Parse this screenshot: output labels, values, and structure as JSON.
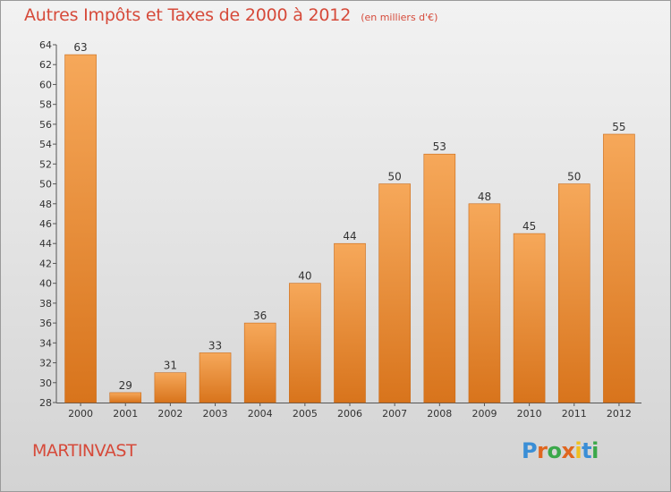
{
  "chart_data": {
    "type": "bar",
    "title": "Autres Impôts et Taxes de 2000 à 2012",
    "subtitle": "(en milliers d'€)",
    "categories": [
      "2000",
      "2001",
      "2002",
      "2003",
      "2004",
      "2005",
      "2006",
      "2007",
      "2008",
      "2009",
      "2010",
      "2011",
      "2012"
    ],
    "values": [
      63,
      29,
      31,
      33,
      36,
      40,
      44,
      50,
      53,
      48,
      45,
      50,
      55
    ],
    "ylim": [
      28,
      64
    ],
    "yticks": [
      28,
      30,
      32,
      34,
      36,
      38,
      40,
      42,
      44,
      46,
      48,
      50,
      52,
      54,
      56,
      58,
      60,
      62,
      64
    ],
    "grid": false,
    "bar_color": "#f0963a",
    "title_color": "#d64a3a"
  },
  "footer": {
    "city": "MARTINVAST",
    "logo": "Proxiti"
  }
}
